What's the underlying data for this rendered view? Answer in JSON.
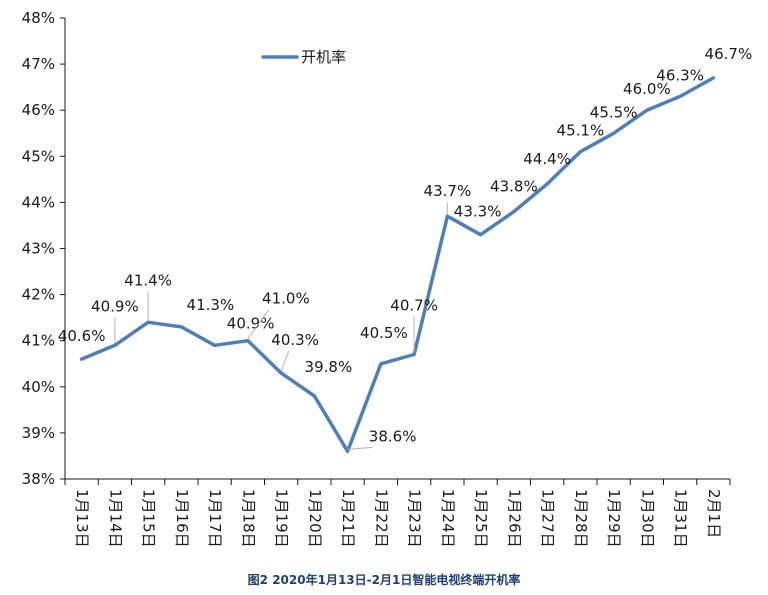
{
  "caption": "图2 2020年1月13日-2月1日智能电视终端开机率",
  "chart_data": {
    "type": "line",
    "categories": [
      "1月13日",
      "1月14日",
      "1月15日",
      "1月16日",
      "1月17日",
      "1月18日",
      "1月19日",
      "1月20日",
      "1月21日",
      "1月22日",
      "1月23日",
      "1月24日",
      "1月25日",
      "1月26日",
      "1月27日",
      "1月28日",
      "1月29日",
      "1月30日",
      "1月31日",
      "2月1日"
    ],
    "series": [
      {
        "name": "开机率",
        "color": "#4e7fb7",
        "values": [
          40.6,
          40.9,
          41.4,
          41.3,
          40.9,
          41.0,
          40.3,
          39.8,
          38.6,
          40.5,
          40.7,
          43.7,
          43.3,
          43.8,
          44.4,
          45.1,
          45.5,
          46.0,
          46.3,
          46.7
        ],
        "data_labels": [
          "40.6%",
          "40.9%",
          "41.4%",
          "41.3%",
          "40.9%",
          "41.0%",
          "40.3%",
          "39.8%",
          "38.6%",
          "40.5%",
          "40.7%",
          "43.7%",
          "43.3%",
          "43.8%",
          "44.4%",
          "45.1%",
          "45.5%",
          "46.0%",
          "46.3%",
          "46.7%"
        ]
      }
    ],
    "ylim": [
      38,
      48
    ],
    "yticks": [
      38,
      39,
      40,
      41,
      42,
      43,
      44,
      45,
      46,
      47,
      48
    ],
    "ytick_labels": [
      "38%",
      "39%",
      "40%",
      "41%",
      "42%",
      "43%",
      "44%",
      "45%",
      "46%",
      "47%",
      "48%"
    ],
    "grid": false,
    "legend": "top-left"
  }
}
